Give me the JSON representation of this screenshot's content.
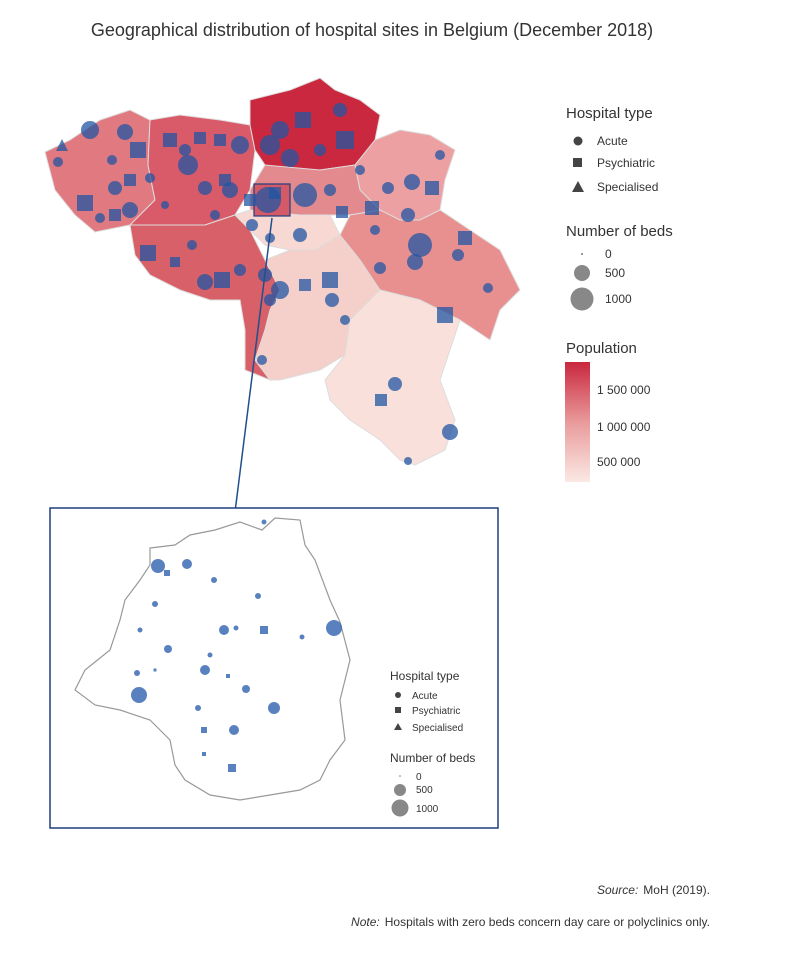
{
  "title": "Geographical distribution of hospital sites in Belgium (December 2018)",
  "legend": {
    "type_title": "Hospital type",
    "types": [
      "Acute",
      "Psychiatric",
      "Specialised"
    ],
    "beds_title": "Number of beds",
    "beds": [
      "0",
      "500",
      "1000"
    ],
    "population_title": "Population",
    "population": [
      "1 500 000",
      "1 000 000",
      "500 000"
    ]
  },
  "inset_legend": {
    "type_title": "Hospital type",
    "types": [
      "Acute",
      "Psychiatric",
      "Specialised"
    ],
    "beds_title": "Number of beds",
    "beds": [
      "0",
      "500",
      "1000"
    ]
  },
  "source": {
    "label": "Source:",
    "text": "MoH (2019)."
  },
  "note": {
    "label": "Note:",
    "text": "Hospitals with zero beds concern day care or polyclinics only."
  }
}
